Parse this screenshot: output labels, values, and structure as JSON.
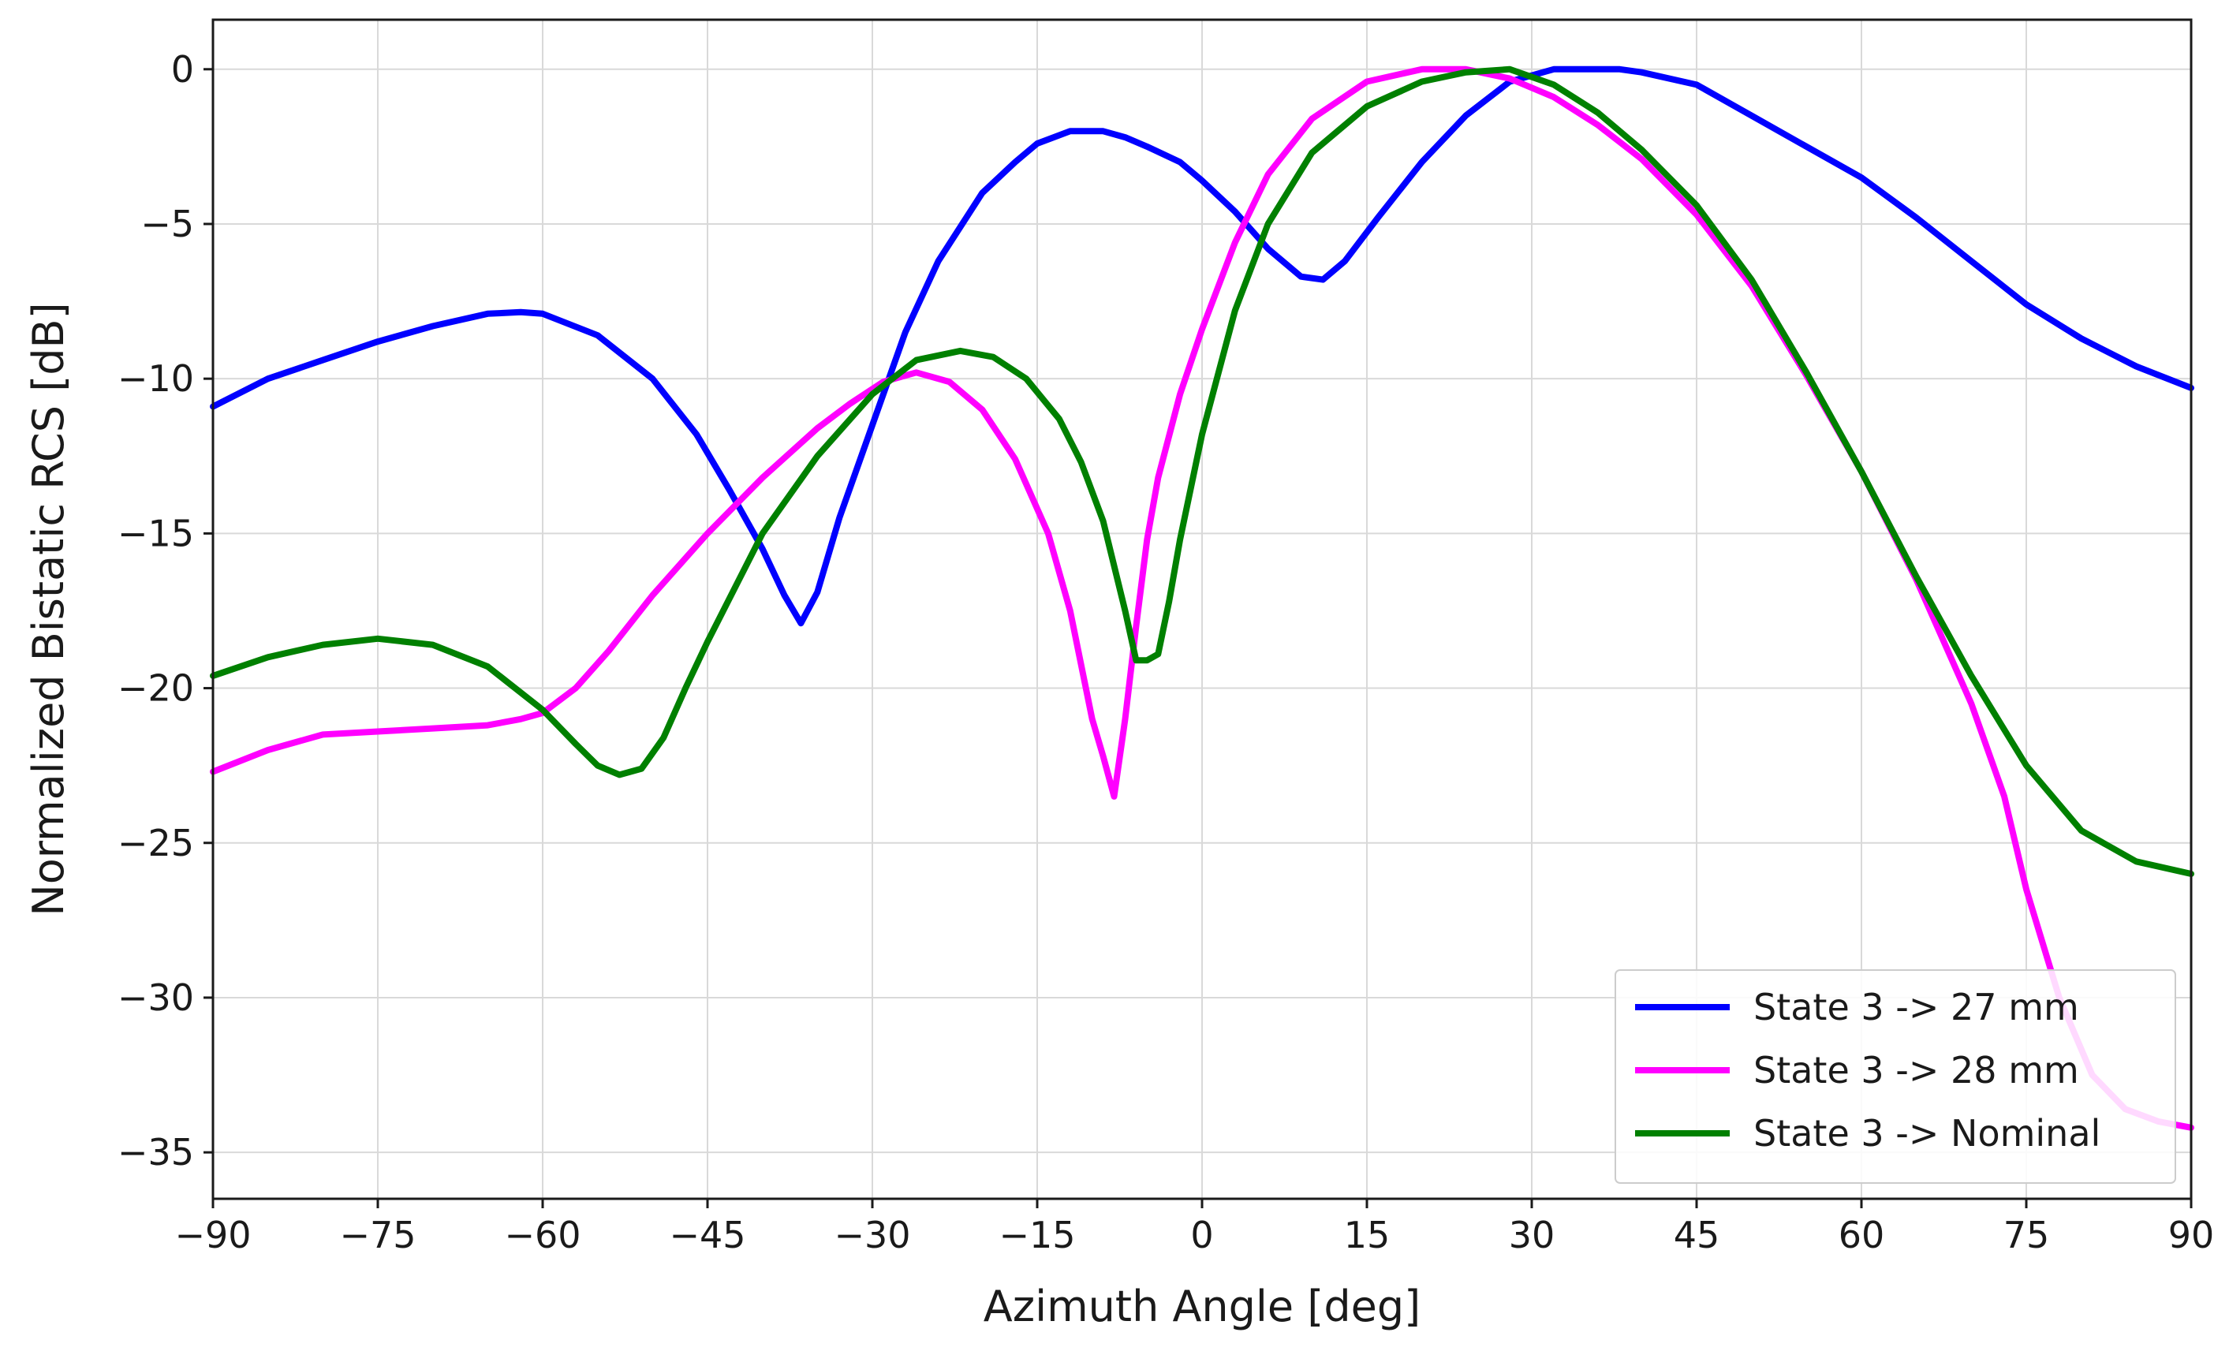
{
  "chart_data": {
    "type": "line",
    "title": "",
    "xlabel": "Azimuth Angle [deg]",
    "ylabel": "Normalized Bistatic RCS [dB]",
    "xlim": [
      -90,
      90
    ],
    "ylim": [
      -36.5,
      1.6
    ],
    "xticks": [
      -90,
      -75,
      -60,
      -45,
      -30,
      -15,
      0,
      15,
      30,
      45,
      60,
      75,
      90
    ],
    "xtick_labels": [
      "−90",
      "−75",
      "−60",
      "−45",
      "−30",
      "−15",
      "0",
      "15",
      "30",
      "45",
      "60",
      "75",
      "90"
    ],
    "yticks": [
      0,
      -5,
      -10,
      -15,
      -20,
      -25,
      -30,
      -35
    ],
    "ytick_labels": [
      "0",
      "−5",
      "−10",
      "−15",
      "−20",
      "−25",
      "−30",
      "−35"
    ],
    "grid": true,
    "legend_position": "bottom-right",
    "series": [
      {
        "name": "State 3 -> 27 mm",
        "color": "#0000ff",
        "x": [
          -90,
          -85,
          -80,
          -75,
          -70,
          -65,
          -62,
          -60,
          -55,
          -50,
          -46,
          -43,
          -40,
          -38,
          -36.5,
          -35,
          -33,
          -30,
          -27,
          -24,
          -20,
          -17,
          -15,
          -12,
          -9,
          -7,
          -5,
          -2,
          0,
          3,
          6,
          9,
          11,
          13,
          16,
          20,
          24,
          28,
          32,
          35,
          38,
          40,
          45,
          50,
          55,
          60,
          65,
          70,
          75,
          80,
          85,
          90
        ],
        "y": [
          -10.9,
          -10.0,
          -9.4,
          -8.8,
          -8.3,
          -7.9,
          -7.85,
          -7.9,
          -8.6,
          -10.0,
          -11.8,
          -13.6,
          -15.5,
          -17.0,
          -17.9,
          -16.9,
          -14.5,
          -11.5,
          -8.5,
          -6.2,
          -4.0,
          -3.0,
          -2.4,
          -2.0,
          -2.0,
          -2.2,
          -2.5,
          -3.0,
          -3.6,
          -4.6,
          -5.8,
          -6.7,
          -6.8,
          -6.2,
          -4.8,
          -3.0,
          -1.5,
          -0.4,
          0.0,
          0.0,
          0.0,
          -0.1,
          -0.5,
          -1.5,
          -2.5,
          -3.5,
          -4.8,
          -6.2,
          -7.6,
          -8.7,
          -9.6,
          -10.3
        ]
      },
      {
        "name": "State 3 -> 28 mm",
        "color": "#ff00ff",
        "x": [
          -90,
          -85,
          -80,
          -75,
          -70,
          -65,
          -62,
          -60,
          -57,
          -54,
          -50,
          -45,
          -40,
          -35,
          -32,
          -29,
          -26,
          -23,
          -20,
          -17,
          -14,
          -12,
          -10,
          -9,
          -8,
          -7,
          -6,
          -5,
          -4,
          -2,
          0,
          3,
          6,
          10,
          15,
          20,
          24,
          28,
          32,
          36,
          40,
          45,
          50,
          55,
          60,
          65,
          70,
          73,
          75,
          78,
          81,
          84,
          87,
          90
        ],
        "y": [
          -22.7,
          -22.0,
          -21.5,
          -21.4,
          -21.3,
          -21.2,
          -21.0,
          -20.8,
          -20.0,
          -18.8,
          -17.0,
          -15.0,
          -13.2,
          -11.6,
          -10.8,
          -10.1,
          -9.8,
          -10.1,
          -11.0,
          -12.6,
          -15.0,
          -17.5,
          -21.0,
          -22.2,
          -23.5,
          -21.0,
          -18.0,
          -15.2,
          -13.2,
          -10.5,
          -8.4,
          -5.6,
          -3.4,
          -1.6,
          -0.4,
          0.0,
          0.0,
          -0.3,
          -0.9,
          -1.8,
          -2.9,
          -4.7,
          -7.0,
          -9.9,
          -13.0,
          -16.5,
          -20.5,
          -23.5,
          -26.5,
          -30.0,
          -32.5,
          -33.6,
          -34.0,
          -34.2
        ]
      },
      {
        "name": "State 3 -> Nominal",
        "color": "#008000",
        "x": [
          -90,
          -85,
          -80,
          -75,
          -70,
          -65,
          -60,
          -57,
          -55,
          -53,
          -51,
          -49,
          -47,
          -45,
          -40,
          -35,
          -30,
          -26,
          -22,
          -19,
          -16,
          -13,
          -11,
          -9,
          -7,
          -6,
          -5,
          -4,
          -3,
          -2,
          0,
          3,
          6,
          10,
          15,
          20,
          24,
          28,
          32,
          36,
          40,
          45,
          50,
          55,
          60,
          65,
          70,
          75,
          80,
          85,
          90
        ],
        "y": [
          -19.6,
          -19.0,
          -18.6,
          -18.4,
          -18.6,
          -19.3,
          -20.7,
          -21.8,
          -22.5,
          -22.8,
          -22.6,
          -21.6,
          -20.0,
          -18.5,
          -15.0,
          -12.5,
          -10.5,
          -9.4,
          -9.1,
          -9.3,
          -10.0,
          -11.3,
          -12.7,
          -14.6,
          -17.5,
          -19.1,
          -19.1,
          -18.9,
          -17.2,
          -15.2,
          -11.8,
          -7.8,
          -5.0,
          -2.7,
          -1.2,
          -0.4,
          -0.1,
          0.0,
          -0.5,
          -1.4,
          -2.6,
          -4.4,
          -6.8,
          -9.8,
          -13.0,
          -16.4,
          -19.6,
          -22.5,
          -24.6,
          -25.6,
          -26.0
        ]
      }
    ]
  }
}
